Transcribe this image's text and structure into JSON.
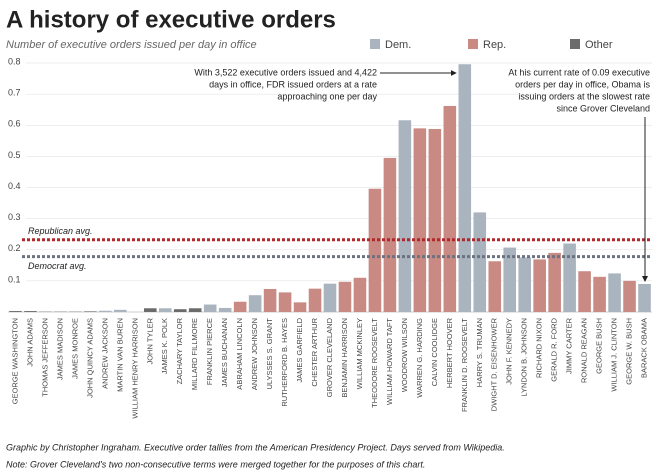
{
  "chart_data": {
    "type": "bar",
    "title": "A history of executive orders",
    "subtitle": "Number of executive orders issued per day in office",
    "legend": [
      {
        "name": "Dem.",
        "color": "#a9b4bf"
      },
      {
        "name": "Rep.",
        "color": "#c98a84"
      },
      {
        "name": "Other",
        "color": "#6b6b6b"
      }
    ],
    "categories": [
      "GEORGE WASHINGTON",
      "JOHN ADAMS",
      "THOMAS JEFFERSON",
      "JAMES MADISON",
      "JAMES MONROE",
      "JOHN QUINCY ADAMS",
      "ANDREW JACKSON",
      "MARTIN VAN BUREN",
      "WILLIAM HENRY HARRISON",
      "JOHN TYLER",
      "JAMES K. POLK",
      "ZACHARY TAYLOR",
      "MILLARD FILLMORE",
      "FRANKLIN PIERCE",
      "JAMES BUCHANAN",
      "ABRAHAM LINCOLN",
      "ANDREW JOHNSON",
      "ULYSSES S. GRANT",
      "RUTHERFORD B. HAYES",
      "JAMES GARFIELD",
      "CHESTER ARTHUR",
      "GROVER CLEVELAND",
      "BENJAMIN HARRISON",
      "WILLIAM MCKINLEY",
      "THEODORE ROOSEVELT",
      "WILLIAM HOWARD TAFT",
      "WOODROW WILSON",
      "WARREN G. HARDING",
      "CALVIN COOLIDGE",
      "HERBERT HOOVER",
      "FRANKLIN D. ROOSEVELT",
      "HARRY S. TRUMAN",
      "DWIGHT D. EISENHOWER",
      "JOHN F. KENNEDY",
      "LYNDON B. JOHNSON",
      "RICHARD NIXON",
      "GERALD R. FORD",
      "JIMMY CARTER",
      "RONALD REAGAN",
      "GEORGE BUSH",
      "WILLIAM J. CLINTON",
      "GEORGE W. BUSH",
      "BARACK OBAMA"
    ],
    "values": [
      0.003,
      0.003,
      0.001,
      0.001,
      0.001,
      0.002,
      0.004,
      0.007,
      0,
      0.012,
      0.012,
      0.009,
      0.012,
      0.024,
      0.013,
      0.033,
      0.054,
      0.074,
      0.063,
      0.031,
      0.075,
      0.091,
      0.097,
      0.11,
      0.396,
      0.495,
      0.616,
      0.59,
      0.588,
      0.662,
      0.796,
      0.32,
      0.163,
      0.207,
      0.175,
      0.169,
      0.19,
      0.22,
      0.131,
      0.113,
      0.124,
      0.1,
      0.09
    ],
    "bar_colors": [
      "#6b6b6b",
      "#6b6b6b",
      "#6b6b6b",
      "#6b6b6b",
      "#6b6b6b",
      "#6b6b6b",
      "#a9b4bf",
      "#a9b4bf",
      "#6b6b6b",
      "#6b6b6b",
      "#a9b4bf",
      "#6b6b6b",
      "#6b6b6b",
      "#a9b4bf",
      "#a9b4bf",
      "#c98a84",
      "#a9b4bf",
      "#c98a84",
      "#c98a84",
      "#c98a84",
      "#c98a84",
      "#a9b4bf",
      "#c98a84",
      "#c98a84",
      "#c98a84",
      "#c98a84",
      "#a9b4bf",
      "#c98a84",
      "#c98a84",
      "#c98a84",
      "#a9b4bf",
      "#a9b4bf",
      "#c98a84",
      "#a9b4bf",
      "#a9b4bf",
      "#c98a84",
      "#c98a84",
      "#a9b4bf",
      "#c98a84",
      "#c98a84",
      "#a9b4bf",
      "#c98a84",
      "#a9b4bf"
    ],
    "ylim": [
      0,
      0.8
    ],
    "yticks": [
      0.1,
      0.2,
      0.3,
      0.4,
      0.5,
      0.6,
      0.7,
      0.8
    ],
    "grid": true,
    "reference_lines": [
      {
        "label": "Republican avg.",
        "value": 0.232,
        "color": "#b0282c"
      },
      {
        "label": "Democrat avg.",
        "value": 0.178,
        "color": "#6b7380"
      }
    ],
    "annotations": [
      {
        "lines": [
          "With 3,522 executive orders issued and 4,422",
          "days in office, FDR issued orders at a rate",
          "approaching one per day"
        ]
      },
      {
        "lines": [
          "At his current rate of 0.09 executive",
          "orders per day in office, Obama is",
          "issuing orders at the slowest rate",
          "since Grover Cleveland"
        ]
      }
    ],
    "notes": [
      "Graphic by Christopher Ingraham. Executive order tallies from the American Presidency Project. Days served from Wikipedia.",
      "Note: Grover Cleveland's two non-consecutive terms were merged together for the purposes of this chart."
    ]
  }
}
